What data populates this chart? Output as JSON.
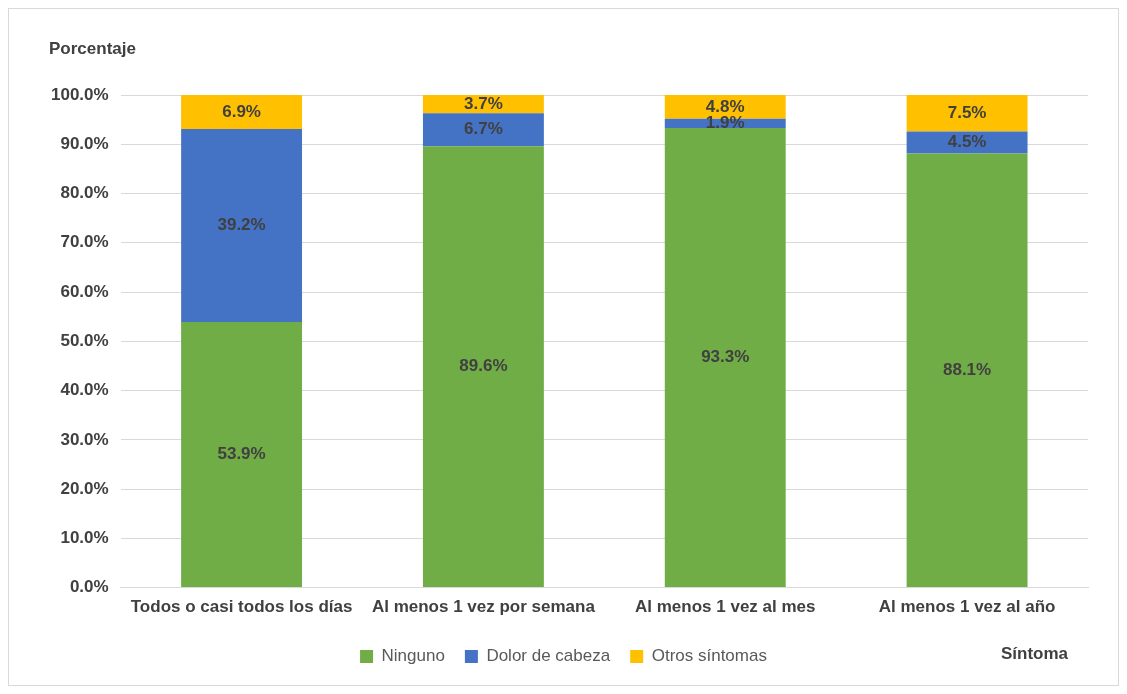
{
  "chart_data": {
    "type": "bar",
    "stacked": true,
    "ylabel": "Porcentaje",
    "xlabel": "Síntoma",
    "categories": [
      "Todos o casi todos los días",
      "Al menos 1 vez por semana",
      "Al menos 1 vez al mes",
      "Al menos 1 vez al año"
    ],
    "series": [
      {
        "name": "Ninguno",
        "color": "#70ad47",
        "values": [
          53.9,
          89.6,
          93.3,
          88.1
        ],
        "value_labels": [
          "53.9%",
          "89.6%",
          "93.3%",
          "88.1%"
        ]
      },
      {
        "name": "Dolor de cabeza",
        "color": "#4472c4",
        "values": [
          39.2,
          6.7,
          1.9,
          4.5
        ],
        "value_labels": [
          "39.2%",
          "6.7%",
          "1.9%",
          "4.5%"
        ]
      },
      {
        "name": "Otros síntomas",
        "color": "#ffc000",
        "values": [
          6.9,
          3.7,
          4.8,
          7.5
        ],
        "value_labels": [
          "6.9%",
          "3.7%",
          "4.8%",
          "7.5%"
        ]
      }
    ],
    "ylim": [
      0,
      100
    ],
    "yticks": [
      {
        "value": 0,
        "label": "0.0%"
      },
      {
        "value": 10,
        "label": "10.0%"
      },
      {
        "value": 20,
        "label": "20.0%"
      },
      {
        "value": 30,
        "label": "30.0%"
      },
      {
        "value": 40,
        "label": "40.0%"
      },
      {
        "value": 50,
        "label": "50.0%"
      },
      {
        "value": 60,
        "label": "60.0%"
      },
      {
        "value": 70,
        "label": "70.0%"
      },
      {
        "value": 80,
        "label": "80.0%"
      },
      {
        "value": 90,
        "label": "90.0%"
      },
      {
        "value": 100,
        "label": "100.0%"
      }
    ],
    "grid": "y",
    "legend": "bottom"
  }
}
